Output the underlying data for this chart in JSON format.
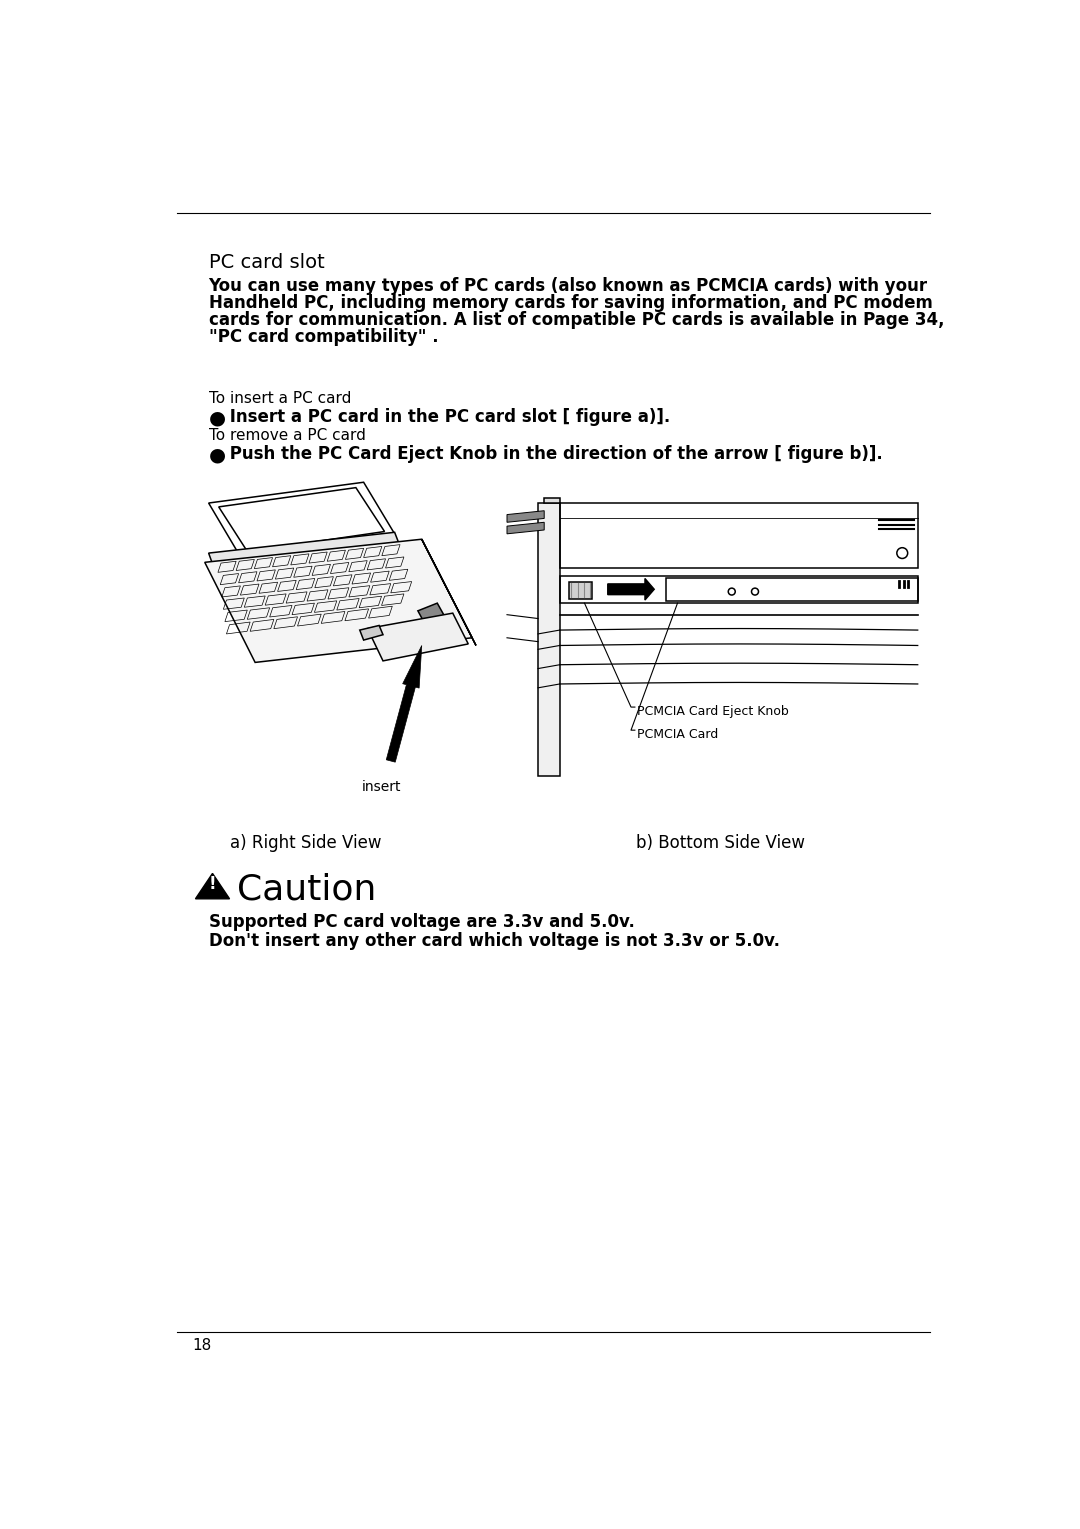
{
  "bg_color": "#ffffff",
  "page_number": "18",
  "title": "PC card slot",
  "title_fontsize": 14,
  "body_text_line1": "You can use many types of PC cards (also known as PCMCIA cards) with your",
  "body_text_line2": "Handheld PC, including memory cards for saving information, and PC modem",
  "body_text_line3": "cards for communication. A list of compatible PC cards is available in Page 34,",
  "body_text_line4": "\"PC card compatibility\" .",
  "body_fontsize": 12,
  "section1_label": "To insert a PC card",
  "section1_bullet": " Insert a PC card in the PC card slot [ figure a)].",
  "section2_label": "To remove a PC card",
  "section2_bullet": " Push the PC Card Eject Knob in the direction of the arrow [ figure b)].",
  "section_label_fontsize": 11,
  "section_bullet_fontsize": 12,
  "fig_a_label": "a) Right Side View",
  "fig_b_label": "b) Bottom Side View",
  "insert_label": "insert",
  "label1": "PCMCIA Card Eject Knob",
  "label2": "PCMCIA Card",
  "caution_title": "Caution",
  "caution_line1": "Supported PC card voltage are 3.3v and 5.0v.",
  "caution_line2": "Don't insert any other card which voltage is not 3.3v or 5.0v.",
  "caution_fontsize": 12
}
